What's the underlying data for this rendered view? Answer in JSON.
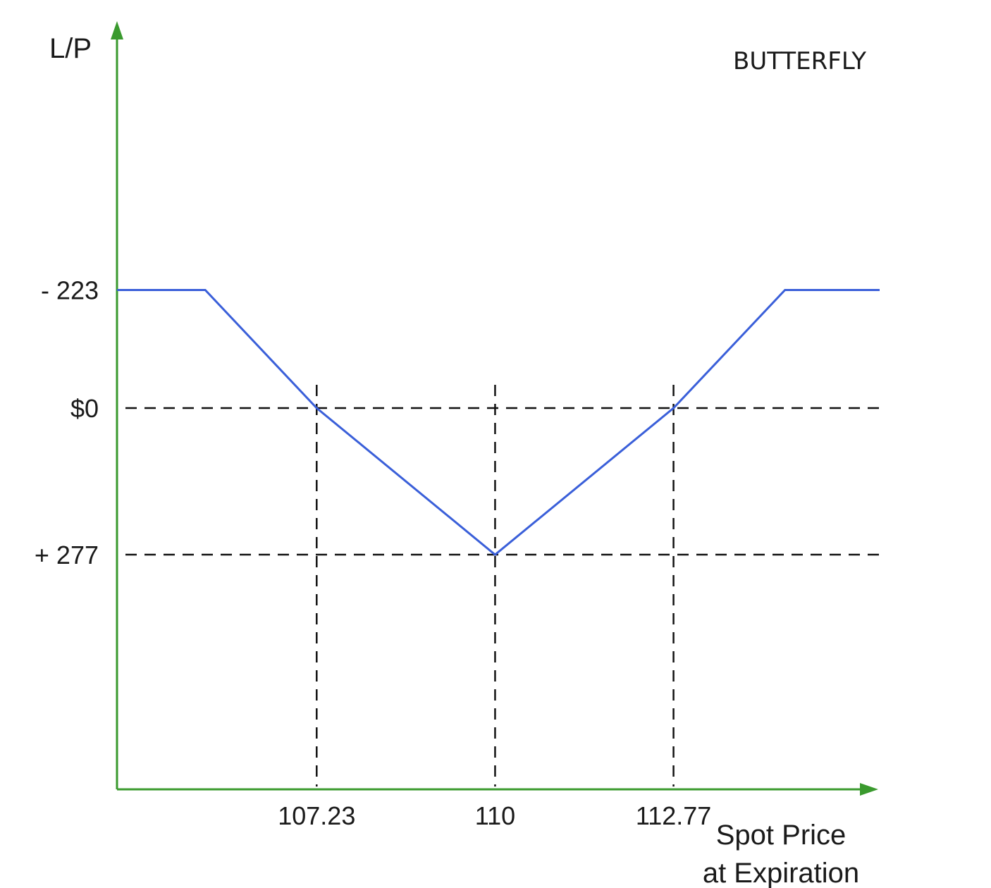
{
  "chart_data": {
    "type": "line",
    "title": "BUTTERFLY",
    "ylabel": "L/P",
    "xlabel_lines": [
      "Spot Price",
      "at Expiration"
    ],
    "x_ticks": [
      "107.23",
      "110",
      "112.77"
    ],
    "y_ticks": [
      "- 223",
      "$0",
      "+ 277"
    ],
    "series": [
      {
        "x": [
          104.13,
          105.5,
          107.23,
          110,
          112.77,
          114.5,
          115.97
        ],
        "y": [
          -223,
          -223,
          0,
          277,
          0,
          -223,
          -223
        ]
      }
    ],
    "reference_lines": {
      "horizontal": [
        0,
        277
      ],
      "vertical": [
        107.23,
        110,
        112.77
      ]
    },
    "y_axis_inverted": true,
    "grid": false,
    "colors": {
      "axis": "#3a9a2e",
      "payoff_line": "#3a5fd9",
      "reference": "#111111"
    }
  }
}
